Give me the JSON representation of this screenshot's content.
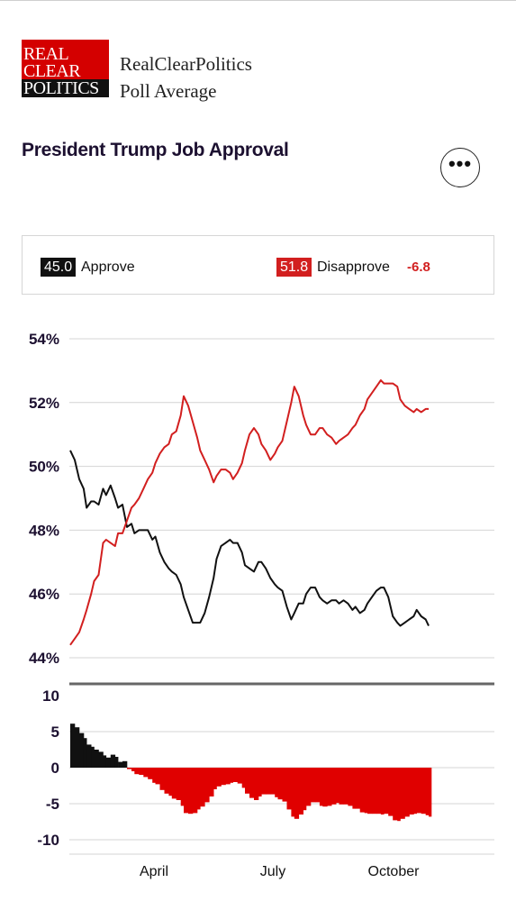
{
  "header": {
    "logo_words": [
      "REAL",
      "CLEAR",
      "POLITICS"
    ],
    "brand_line1": "RealClearPolitics",
    "brand_line2": "Poll Average",
    "more_icon": "ellipsis-icon"
  },
  "chart_title": "President Trump Job Approval",
  "legend": {
    "approve": {
      "value": "45.0",
      "label": "Approve",
      "color": "#111111"
    },
    "disapprove": {
      "value": "51.8",
      "label": "Disapprove",
      "color": "#d21f1f"
    },
    "spread": "-6.8"
  },
  "chart_data": [
    {
      "type": "line",
      "y_ticks": [
        "54%",
        "52%",
        "50%",
        "48%",
        "46%",
        "44%"
      ],
      "ylim": [
        44,
        54
      ],
      "x_ticks": [
        "April",
        "July",
        "October"
      ],
      "grid": true,
      "series": [
        {
          "name": "Approve",
          "color": "#111111",
          "points": [
            [
              0,
              50.5
            ],
            [
              3,
              50.2
            ],
            [
              6,
              49.6
            ],
            [
              9,
              49.3
            ],
            [
              11,
              48.7
            ],
            [
              14,
              48.9
            ],
            [
              16,
              48.9
            ],
            [
              19,
              48.8
            ],
            [
              22,
              49.3
            ],
            [
              24,
              49.1
            ],
            [
              27,
              49.4
            ],
            [
              30,
              49.0
            ],
            [
              32,
              48.7
            ],
            [
              35,
              48.8
            ],
            [
              38,
              48.1
            ],
            [
              41,
              48.2
            ],
            [
              43,
              47.9
            ],
            [
              46,
              48.0
            ],
            [
              49,
              48.0
            ],
            [
              52,
              48.0
            ],
            [
              55,
              47.7
            ],
            [
              57,
              47.8
            ],
            [
              60,
              47.3
            ],
            [
              63,
              47.0
            ],
            [
              66,
              46.8
            ],
            [
              68,
              46.7
            ],
            [
              71,
              46.6
            ],
            [
              74,
              46.3
            ],
            [
              76,
              45.9
            ],
            [
              79,
              45.5
            ],
            [
              82,
              45.1
            ],
            [
              85,
              45.1
            ],
            [
              87,
              45.1
            ],
            [
              90,
              45.4
            ],
            [
              93,
              45.9
            ],
            [
              96,
              46.5
            ],
            [
              98,
              47.1
            ],
            [
              101,
              47.5
            ],
            [
              104,
              47.6
            ],
            [
              107,
              47.7
            ],
            [
              109,
              47.6
            ],
            [
              112,
              47.6
            ],
            [
              115,
              47.3
            ],
            [
              117,
              46.9
            ],
            [
              120,
              46.8
            ],
            [
              123,
              46.7
            ],
            [
              126,
              47.0
            ],
            [
              128,
              47.0
            ],
            [
              131,
              46.8
            ],
            [
              134,
              46.5
            ],
            [
              137,
              46.3
            ],
            [
              139,
              46.2
            ],
            [
              142,
              46.1
            ],
            [
              145,
              45.6
            ],
            [
              148,
              45.2
            ],
            [
              150,
              45.4
            ],
            [
              153,
              45.7
            ],
            [
              156,
              45.7
            ],
            [
              158,
              46.0
            ],
            [
              161,
              46.2
            ],
            [
              164,
              46.2
            ],
            [
              167,
              45.9
            ],
            [
              169,
              45.8
            ],
            [
              172,
              45.7
            ],
            [
              175,
              45.8
            ],
            [
              178,
              45.8
            ],
            [
              180,
              45.7
            ],
            [
              183,
              45.8
            ],
            [
              186,
              45.7
            ],
            [
              189,
              45.5
            ],
            [
              191,
              45.6
            ],
            [
              194,
              45.4
            ],
            [
              197,
              45.5
            ],
            [
              199,
              45.7
            ],
            [
              202,
              45.9
            ],
            [
              205,
              46.1
            ],
            [
              208,
              46.2
            ],
            [
              210,
              46.2
            ],
            [
              213,
              45.9
            ],
            [
              216,
              45.3
            ],
            [
              219,
              45.1
            ],
            [
              221,
              45.0
            ],
            [
              224,
              45.1
            ],
            [
              227,
              45.2
            ],
            [
              230,
              45.3
            ],
            [
              232,
              45.5
            ],
            [
              235,
              45.3
            ],
            [
              238,
              45.2
            ],
            [
              240,
              45.0
            ]
          ]
        },
        {
          "name": "Disapprove",
          "color": "#d21f1f",
          "points": [
            [
              0,
              44.4
            ],
            [
              3,
              44.6
            ],
            [
              6,
              44.8
            ],
            [
              9,
              45.2
            ],
            [
              11,
              45.5
            ],
            [
              14,
              46.0
            ],
            [
              16,
              46.4
            ],
            [
              19,
              46.6
            ],
            [
              22,
              47.6
            ],
            [
              24,
              47.7
            ],
            [
              27,
              47.6
            ],
            [
              30,
              47.5
            ],
            [
              32,
              47.9
            ],
            [
              35,
              47.9
            ],
            [
              38,
              48.3
            ],
            [
              41,
              48.7
            ],
            [
              43,
              48.8
            ],
            [
              46,
              49.0
            ],
            [
              49,
              49.3
            ],
            [
              52,
              49.6
            ],
            [
              55,
              49.8
            ],
            [
              57,
              50.1
            ],
            [
              60,
              50.4
            ],
            [
              63,
              50.6
            ],
            [
              66,
              50.7
            ],
            [
              68,
              51.0
            ],
            [
              71,
              51.1
            ],
            [
              74,
              51.6
            ],
            [
              76,
              52.2
            ],
            [
              79,
              51.9
            ],
            [
              82,
              51.4
            ],
            [
              85,
              50.9
            ],
            [
              87,
              50.5
            ],
            [
              90,
              50.2
            ],
            [
              93,
              49.9
            ],
            [
              96,
              49.5
            ],
            [
              98,
              49.7
            ],
            [
              101,
              49.9
            ],
            [
              104,
              49.9
            ],
            [
              107,
              49.8
            ],
            [
              109,
              49.6
            ],
            [
              112,
              49.8
            ],
            [
              115,
              50.1
            ],
            [
              117,
              50.5
            ],
            [
              120,
              51.0
            ],
            [
              123,
              51.2
            ],
            [
              126,
              51.0
            ],
            [
              128,
              50.7
            ],
            [
              131,
              50.5
            ],
            [
              134,
              50.2
            ],
            [
              137,
              50.4
            ],
            [
              139,
              50.6
            ],
            [
              142,
              50.8
            ],
            [
              145,
              51.4
            ],
            [
              148,
              52.0
            ],
            [
              150,
              52.5
            ],
            [
              153,
              52.2
            ],
            [
              156,
              51.6
            ],
            [
              158,
              51.3
            ],
            [
              161,
              51.0
            ],
            [
              164,
              51.0
            ],
            [
              167,
              51.2
            ],
            [
              169,
              51.2
            ],
            [
              172,
              51.0
            ],
            [
              175,
              50.9
            ],
            [
              178,
              50.7
            ],
            [
              180,
              50.8
            ],
            [
              183,
              50.9
            ],
            [
              186,
              51.0
            ],
            [
              189,
              51.2
            ],
            [
              191,
              51.3
            ],
            [
              194,
              51.6
            ],
            [
              197,
              51.8
            ],
            [
              199,
              52.1
            ],
            [
              202,
              52.3
            ],
            [
              205,
              52.5
            ],
            [
              208,
              52.7
            ],
            [
              210,
              52.6
            ],
            [
              213,
              52.6
            ],
            [
              216,
              52.6
            ],
            [
              219,
              52.5
            ],
            [
              221,
              52.1
            ],
            [
              224,
              51.9
            ],
            [
              227,
              51.8
            ],
            [
              230,
              51.7
            ],
            [
              232,
              51.8
            ],
            [
              235,
              51.7
            ],
            [
              238,
              51.8
            ],
            [
              240,
              51.8
            ]
          ]
        }
      ]
    },
    {
      "type": "bar",
      "y_ticks": [
        "10",
        "5",
        "0",
        "-5",
        "-10"
      ],
      "ylim": [
        -10,
        10
      ],
      "x_ticks": [
        "April",
        "July",
        "October"
      ],
      "grid": true,
      "series": [
        {
          "positive_color": "#111111",
          "negative_color": "#e00000",
          "points": [
            [
              0,
              6.1
            ],
            [
              3,
              5.6
            ],
            [
              6,
              4.8
            ],
            [
              9,
              4.1
            ],
            [
              11,
              3.2
            ],
            [
              14,
              2.9
            ],
            [
              16,
              2.5
            ],
            [
              19,
              2.2
            ],
            [
              22,
              1.7
            ],
            [
              24,
              1.4
            ],
            [
              27,
              1.8
            ],
            [
              30,
              1.5
            ],
            [
              32,
              0.8
            ],
            [
              35,
              0.9
            ],
            [
              38,
              -0.2
            ],
            [
              41,
              -0.5
            ],
            [
              43,
              -0.9
            ],
            [
              46,
              -1.0
            ],
            [
              49,
              -1.3
            ],
            [
              52,
              -1.6
            ],
            [
              55,
              -2.1
            ],
            [
              57,
              -2.3
            ],
            [
              60,
              -3.1
            ],
            [
              63,
              -3.6
            ],
            [
              66,
              -3.9
            ],
            [
              68,
              -4.3
            ],
            [
              71,
              -4.5
            ],
            [
              74,
              -5.3
            ],
            [
              76,
              -6.3
            ],
            [
              79,
              -6.4
            ],
            [
              82,
              -6.3
            ],
            [
              85,
              -5.8
            ],
            [
              87,
              -5.4
            ],
            [
              90,
              -4.8
            ],
            [
              93,
              -4.0
            ],
            [
              96,
              -3.0
            ],
            [
              98,
              -2.6
            ],
            [
              101,
              -2.4
            ],
            [
              104,
              -2.3
            ],
            [
              107,
              -2.1
            ],
            [
              109,
              -2.0
            ],
            [
              112,
              -2.2
            ],
            [
              115,
              -2.8
            ],
            [
              117,
              -3.6
            ],
            [
              120,
              -4.2
            ],
            [
              123,
              -4.5
            ],
            [
              126,
              -4.0
            ],
            [
              128,
              -3.7
            ],
            [
              131,
              -3.7
            ],
            [
              134,
              -3.7
            ],
            [
              137,
              -4.1
            ],
            [
              139,
              -4.4
            ],
            [
              142,
              -4.7
            ],
            [
              145,
              -5.8
            ],
            [
              148,
              -6.8
            ],
            [
              150,
              -7.1
            ],
            [
              153,
              -6.5
            ],
            [
              156,
              -5.9
            ],
            [
              158,
              -5.3
            ],
            [
              161,
              -4.8
            ],
            [
              164,
              -4.8
            ],
            [
              167,
              -5.3
            ],
            [
              169,
              -5.4
            ],
            [
              172,
              -5.3
            ],
            [
              175,
              -5.1
            ],
            [
              178,
              -4.9
            ],
            [
              180,
              -5.1
            ],
            [
              183,
              -5.1
            ],
            [
              186,
              -5.3
            ],
            [
              189,
              -5.7
            ],
            [
              191,
              -5.7
            ],
            [
              194,
              -6.2
            ],
            [
              197,
              -6.3
            ],
            [
              199,
              -6.4
            ],
            [
              202,
              -6.4
            ],
            [
              205,
              -6.4
            ],
            [
              208,
              -6.5
            ],
            [
              210,
              -6.4
            ],
            [
              213,
              -6.7
            ],
            [
              216,
              -7.3
            ],
            [
              219,
              -7.4
            ],
            [
              221,
              -7.1
            ],
            [
              224,
              -6.8
            ],
            [
              227,
              -6.5
            ],
            [
              230,
              -6.4
            ],
            [
              232,
              -6.3
            ],
            [
              235,
              -6.4
            ],
            [
              238,
              -6.6
            ],
            [
              240,
              -6.8
            ]
          ]
        }
      ]
    }
  ]
}
